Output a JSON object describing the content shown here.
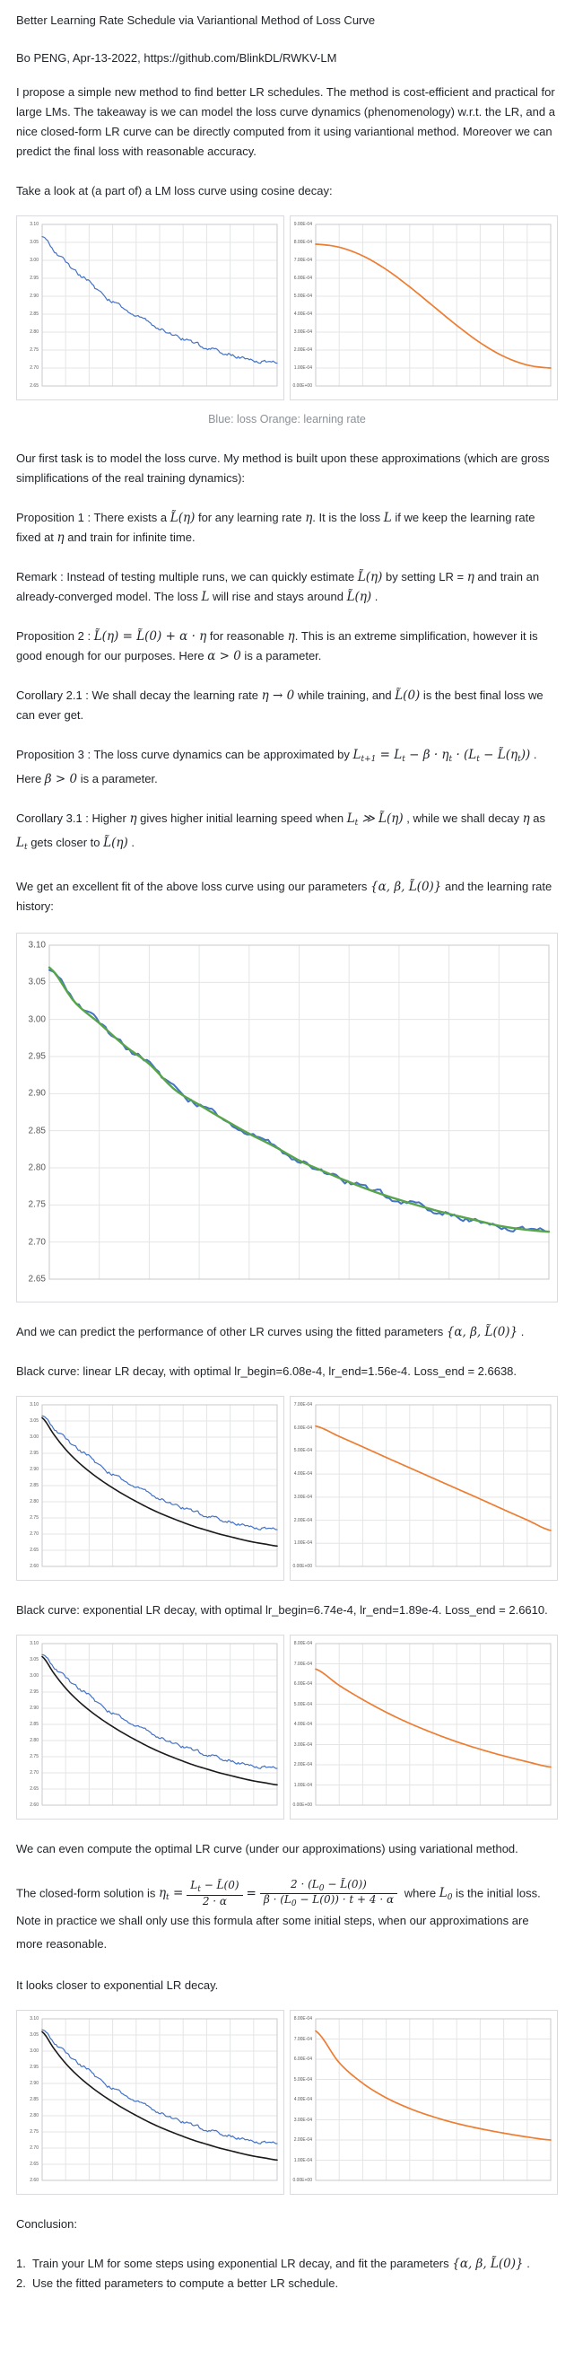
{
  "document": {
    "title": "Better Learning Rate Schedule via Variantional Method of Loss Curve",
    "byline": "Bo PENG, Apr-13-2022, https://github.com/BlinkDL/RWKV-LM",
    "intro": "I propose a simple new method to find better LR schedules. The method is cost-efficient and practical for large LMs. The takeaway is we can model the loss curve dynamics (phenomenology) w.r.t. the LR, and a nice closed-form LR curve can be directly computed from it using variantional method. Moreover we can predict the final loss with reasonable accuracy.",
    "take_look": "Take a look at (a part of) a LM loss curve using cosine decay:",
    "caption1": "Blue: loss Orange: learning rate",
    "first_task": "Our first task is to model the loss curve. My method is built upon these approximations (which are gross simplifications of the real training dynamics):",
    "prop1": [
      {
        "t": "Proposition 1 : There exists a "
      },
      {
        "m": "L̃(η)"
      },
      {
        "t": " for any learning rate "
      },
      {
        "m": "η"
      },
      {
        "t": ". It is the loss "
      },
      {
        "m": "L"
      },
      {
        "t": " if we keep the learning rate fixed at "
      },
      {
        "m": "η"
      },
      {
        "t": " and train for infinite time."
      }
    ],
    "remark": [
      {
        "t": "Remark : Instead of testing multiple runs, we can quickly estimate "
      },
      {
        "m": "L̃(η)"
      },
      {
        "t": " by setting LR = "
      },
      {
        "m": "η"
      },
      {
        "t": " and train an already-converged model. The loss "
      },
      {
        "m": "L"
      },
      {
        "t": " will rise and stays around "
      },
      {
        "m": "L̃(η)"
      },
      {
        "t": " ."
      }
    ],
    "prop2": [
      {
        "t": "Proposition 2 : "
      },
      {
        "m": "L̃(η) = L̃(0) + α · η"
      },
      {
        "t": " for reasonable "
      },
      {
        "m": "η"
      },
      {
        "t": ". This is an extreme simplification, however it is good enough for our purposes. Here "
      },
      {
        "m": "α > 0"
      },
      {
        "t": " is a parameter."
      }
    ],
    "cor21": [
      {
        "t": "Corollary 2.1 : We shall decay the learning rate "
      },
      {
        "m": "η → 0"
      },
      {
        "t": " while training, and "
      },
      {
        "m": "L̃(0)"
      },
      {
        "t": " is the best final loss we can ever get."
      }
    ],
    "prop3": [
      {
        "t": "Proposition 3 : The loss curve dynamics can be approximated by "
      },
      {
        "m": "L_{t+1} = L_t − β · η_t · (L_t − L̃(η_t))"
      },
      {
        "t": " . Here "
      },
      {
        "m": "β > 0"
      },
      {
        "t": " is a parameter."
      }
    ],
    "cor31": [
      {
        "t": "Corollary 3.1 : Higher "
      },
      {
        "m": "η"
      },
      {
        "t": " gives higher initial learning speed when "
      },
      {
        "m": "L_t ≫ L̃(η)"
      },
      {
        "t": " , while we shall decay "
      },
      {
        "m": "η"
      },
      {
        "t": " as "
      },
      {
        "m": "L_t"
      },
      {
        "t": " gets closer to "
      },
      {
        "m": "L̃(η)"
      },
      {
        "t": " ."
      }
    ],
    "fit_para": [
      {
        "t": "We get an excellent fit of the above loss curve using our parameters "
      },
      {
        "m": "{α, β, L̃(0)}"
      },
      {
        "t": " and the learning rate history:"
      }
    ],
    "predict_para": [
      {
        "t": "And we can predict the performance of other LR curves using the fitted parameters "
      },
      {
        "m": "{α, β, L̃(0)}"
      },
      {
        "t": " ."
      }
    ],
    "black_linear": "Black curve: linear LR decay, with optimal lr_begin=6.08e-4, lr_end=1.56e-4. Loss_end = 2.6638.",
    "black_exp": "Black curve: exponential LR decay, with optimal lr_begin=6.74e-4, lr_end=1.89e-4. Loss_end = 2.6610.",
    "compute_para": "We can even compute the optimal LR curve (under our approximations) using variational method.",
    "closed_form": [
      {
        "t": "The closed-form solution is "
      },
      {
        "m": "η_t ="
      },
      {
        "frac": [
          "L_t − L̃(0)",
          "2 · α"
        ]
      },
      {
        "m": "="
      },
      {
        "frac": [
          "2 · (L_0 − L̃(0))",
          "β · (L_0 − L̃(0)) · t + 4 · α"
        ]
      },
      {
        "t": " where "
      },
      {
        "m": "L_0"
      },
      {
        "t": " is the initial loss. Note in practice we shall only use this formula after some initial steps, when our approximations are more reasonable."
      }
    ],
    "closer_para": "It looks closer to exponential LR decay.",
    "conclusion_head": "Conclusion:",
    "conclusion": [
      {
        "num": "1.",
        "segments": [
          {
            "t": "Train your LM for some steps using exponential LR decay, and fit the parameters "
          },
          {
            "m": "{α, β, L̃(0)}"
          },
          {
            "t": " ."
          }
        ]
      },
      {
        "num": "2.",
        "segments": [
          {
            "t": "Use the fitted parameters to compute a better LR schedule."
          }
        ]
      }
    ]
  },
  "chart_data": {
    "colors": {
      "blue": "#4472C4",
      "orange": "#ED7D31",
      "green": "#58A44A",
      "black": "#1a1a1a"
    },
    "curves": {
      "loss": {
        "unit": "loss",
        "x_range": [
          0,
          1
        ],
        "y": [
          3.07,
          3.024,
          2.995,
          2.965,
          2.94,
          2.906,
          2.885,
          2.865,
          2.846,
          2.829,
          2.81,
          2.795,
          2.781,
          2.768,
          2.757,
          2.747,
          2.738,
          2.73,
          2.722,
          2.717,
          2.714
        ]
      },
      "black_pred": {
        "unit": "loss",
        "x_range": [
          0,
          1
        ],
        "y": [
          3.06,
          3.008,
          2.962,
          2.925,
          2.894,
          2.867,
          2.843,
          2.821,
          2.801,
          2.782,
          2.765,
          2.75,
          2.736,
          2.723,
          2.712,
          2.701,
          2.692,
          2.683,
          2.675,
          2.669,
          2.663
        ]
      },
      "lr_cosine": {
        "unit": "1e-4",
        "x_range": [
          0,
          1
        ],
        "y": [
          7.9,
          7.73,
          7.25,
          6.49,
          5.52,
          4.45,
          3.38,
          2.41,
          1.65,
          1.17,
          1.0
        ]
      },
      "lr_linear": {
        "unit": "1e-4",
        "x_range": [
          0,
          1
        ],
        "y": [
          6.08,
          5.63,
          5.18,
          4.72,
          4.27,
          3.82,
          3.37,
          2.92,
          2.46,
          2.01,
          1.56
        ]
      },
      "lr_exp": {
        "unit": "1e-4",
        "x_range": [
          0,
          1
        ],
        "y": [
          6.74,
          5.93,
          5.23,
          4.6,
          4.05,
          3.57,
          3.14,
          2.77,
          2.44,
          2.15,
          1.89
        ]
      },
      "lr_var": {
        "unit": "1e-4",
        "x_range": [
          0,
          1
        ],
        "y": [
          7.4,
          5.83,
          4.81,
          4.09,
          3.56,
          3.15,
          2.82,
          2.56,
          2.34,
          2.15,
          2.0
        ]
      }
    },
    "charts": [
      {
        "id": "pair1-loss",
        "type": "line",
        "title": "",
        "xlabel": "",
        "ylabel": "",
        "ylim": [
          2.65,
          3.1
        ],
        "xcols": 10,
        "grid": true,
        "yticks": [
          "3.10",
          "3.05",
          "3.00",
          "2.95",
          "2.90",
          "2.85",
          "2.80",
          "2.75",
          "2.70",
          "2.65"
        ],
        "series": [
          {
            "name": "loss",
            "curve": "loss",
            "color": "blue",
            "width": 1.2,
            "noise": 0.006
          }
        ]
      },
      {
        "id": "pair1-lr",
        "type": "line",
        "title": "",
        "xlabel": "",
        "ylabel": "",
        "ylim": [
          0,
          9
        ],
        "xcols": 10,
        "grid": true,
        "yticks": [
          "9.00E-04",
          "8.00E-04",
          "7.00E-04",
          "6.00E-04",
          "5.00E-04",
          "4.00E-04",
          "3.00E-04",
          "2.00E-04",
          "1.00E-04",
          "0.00E+00"
        ],
        "series": [
          {
            "name": "learning-rate",
            "curve": "lr_cosine",
            "color": "orange",
            "width": 1.7
          }
        ]
      },
      {
        "id": "big-fit",
        "type": "line",
        "title": "",
        "xlabel": "",
        "ylabel": "",
        "ylim": [
          2.65,
          3.1
        ],
        "xcols": 10,
        "grid": true,
        "yticks": [
          "3.10",
          "3.05",
          "3.00",
          "2.95",
          "2.90",
          "2.85",
          "2.80",
          "2.75",
          "2.70",
          "2.65"
        ],
        "series": [
          {
            "name": "loss",
            "curve": "loss",
            "color": "blue",
            "width": 2.0,
            "noise": 0.005
          },
          {
            "name": "fitted-model",
            "curve": "loss",
            "color": "green",
            "width": 2.4
          }
        ]
      },
      {
        "id": "pair2-loss",
        "type": "line",
        "title": "",
        "xlabel": "",
        "ylabel": "",
        "ylim": [
          2.6,
          3.1
        ],
        "xcols": 10,
        "grid": true,
        "yticks": [
          "3.10",
          "3.05",
          "3.00",
          "2.95",
          "2.90",
          "2.85",
          "2.80",
          "2.75",
          "2.70",
          "2.65",
          "2.60"
        ],
        "series": [
          {
            "name": "predicted-linear-decay",
            "curve": "black_pred",
            "color": "black",
            "width": 1.6
          },
          {
            "name": "loss",
            "curve": "loss",
            "color": "blue",
            "width": 1.2,
            "noise": 0.006
          }
        ]
      },
      {
        "id": "pair2-lr",
        "type": "line",
        "title": "",
        "xlabel": "",
        "ylabel": "",
        "ylim": [
          0,
          7
        ],
        "xcols": 10,
        "grid": true,
        "yticks": [
          "7.00E-04",
          "6.00E-04",
          "5.00E-04",
          "4.00E-04",
          "3.00E-04",
          "2.00E-04",
          "1.00E-04",
          "0.00E+00"
        ],
        "series": [
          {
            "name": "learning-rate-linear",
            "curve": "lr_linear",
            "color": "orange",
            "width": 1.7
          }
        ]
      },
      {
        "id": "pair3-loss",
        "type": "line",
        "title": "",
        "xlabel": "",
        "ylabel": "",
        "ylim": [
          2.6,
          3.1
        ],
        "xcols": 10,
        "grid": true,
        "yticks": [
          "3.10",
          "3.05",
          "3.00",
          "2.95",
          "2.90",
          "2.85",
          "2.80",
          "2.75",
          "2.70",
          "2.65",
          "2.60"
        ],
        "series": [
          {
            "name": "predicted-exp-decay",
            "curve": "black_pred",
            "color": "black",
            "width": 1.6
          },
          {
            "name": "loss",
            "curve": "loss",
            "color": "blue",
            "width": 1.2,
            "noise": 0.006
          }
        ]
      },
      {
        "id": "pair3-lr",
        "type": "line",
        "title": "",
        "xlabel": "",
        "ylabel": "",
        "ylim": [
          0,
          8
        ],
        "xcols": 10,
        "grid": true,
        "yticks": [
          "8.00E-04",
          "7.00E-04",
          "6.00E-04",
          "5.00E-04",
          "4.00E-04",
          "3.00E-04",
          "2.00E-04",
          "1.00E-04",
          "0.00E+00"
        ],
        "series": [
          {
            "name": "learning-rate-exponential",
            "curve": "lr_exp",
            "color": "orange",
            "width": 1.7
          }
        ]
      },
      {
        "id": "pair4-loss",
        "type": "line",
        "title": "",
        "xlabel": "",
        "ylabel": "",
        "ylim": [
          2.6,
          3.1
        ],
        "xcols": 10,
        "grid": true,
        "yticks": [
          "3.10",
          "3.05",
          "3.00",
          "2.95",
          "2.90",
          "2.85",
          "2.80",
          "2.75",
          "2.70",
          "2.65",
          "2.60"
        ],
        "series": [
          {
            "name": "predicted-variational-decay",
            "curve": "black_pred",
            "color": "black",
            "width": 1.6
          },
          {
            "name": "loss",
            "curve": "loss",
            "color": "blue",
            "width": 1.2,
            "noise": 0.006
          }
        ]
      },
      {
        "id": "pair4-lr",
        "type": "line",
        "title": "",
        "xlabel": "",
        "ylabel": "",
        "ylim": [
          0,
          8
        ],
        "xcols": 10,
        "grid": true,
        "yticks": [
          "8.00E-04",
          "7.00E-04",
          "6.00E-04",
          "5.00E-04",
          "4.00E-04",
          "3.00E-04",
          "2.00E-04",
          "1.00E-04",
          "0.00E+00"
        ],
        "series": [
          {
            "name": "learning-rate-variational",
            "curve": "lr_var",
            "color": "orange",
            "width": 1.7
          }
        ]
      }
    ]
  }
}
